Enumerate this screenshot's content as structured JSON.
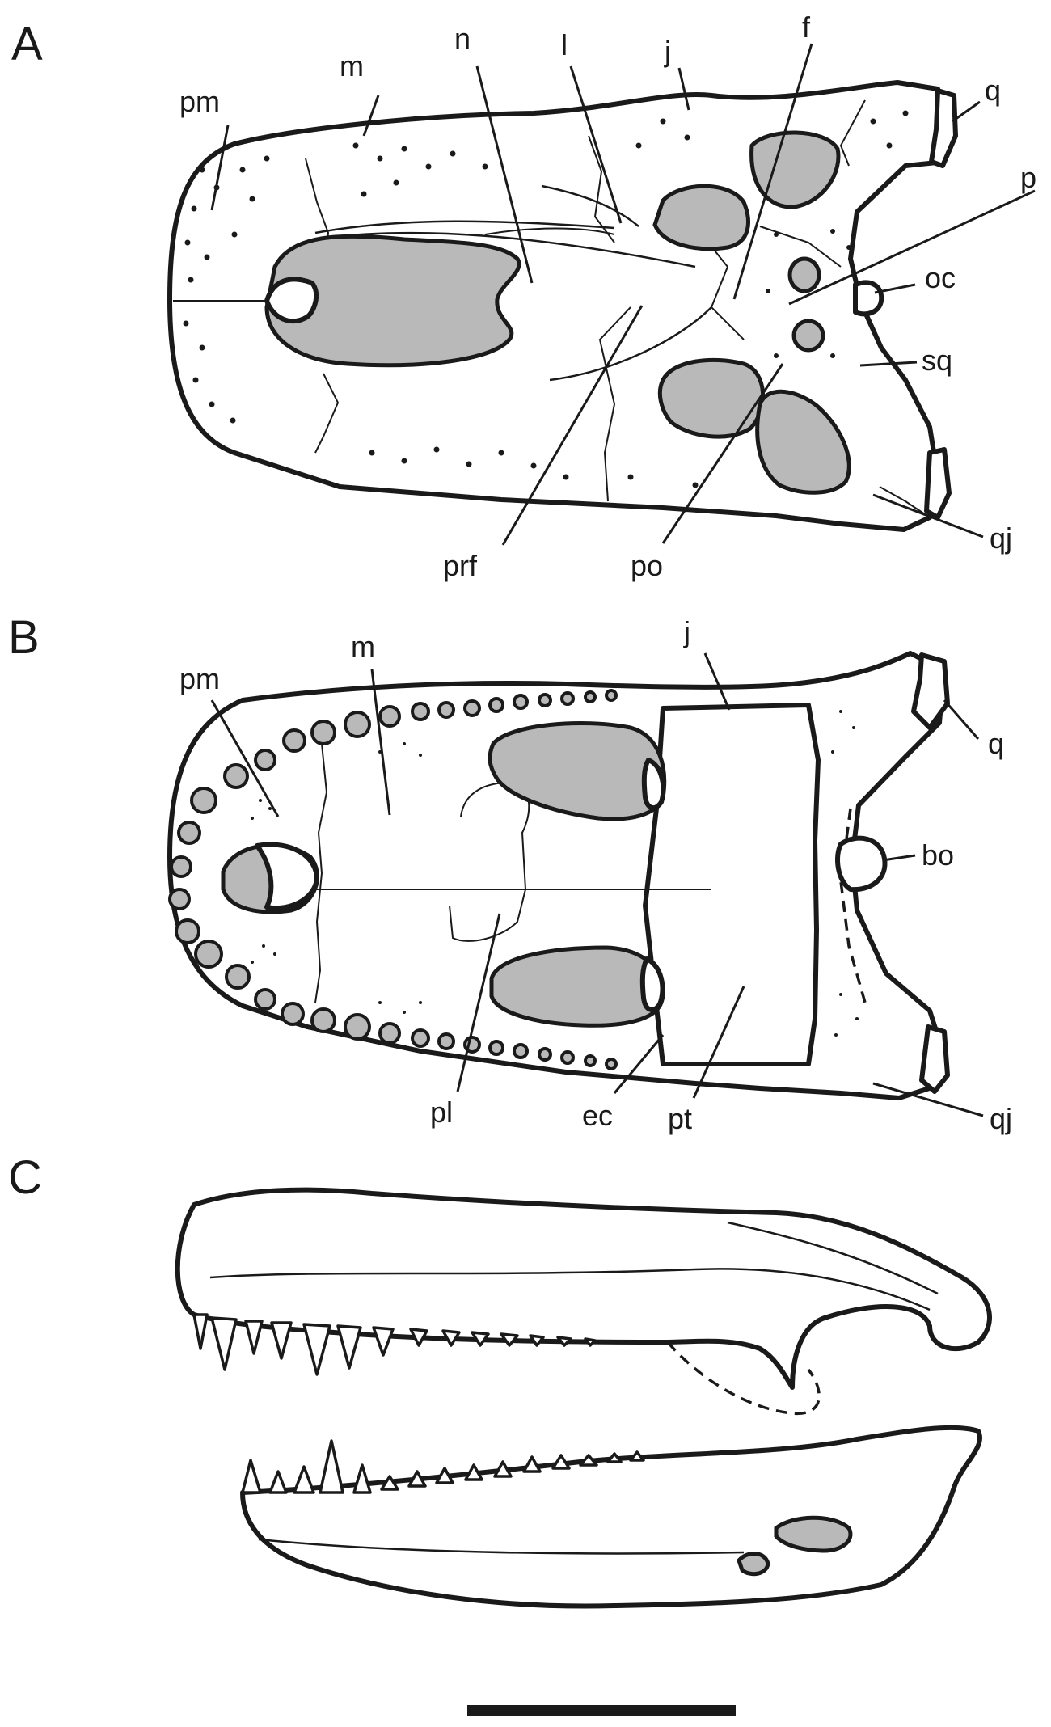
{
  "figure": {
    "panels": [
      {
        "letter": "A",
        "labels": [
          "pm",
          "m",
          "n",
          "l",
          "j",
          "f",
          "q",
          "p",
          "oc",
          "sq",
          "qj",
          "prf",
          "po"
        ]
      },
      {
        "letter": "B",
        "labels": [
          "pm",
          "m",
          "j",
          "q",
          "bo",
          "qj",
          "pl",
          "ec",
          "pt"
        ]
      },
      {
        "letter": "C",
        "labels": []
      }
    ]
  },
  "colors": {
    "ink": "#1a1a1a",
    "fenestra_fill": "#b9b9b9",
    "bone_fill": "#ffffff",
    "background": "#ffffff"
  },
  "scale_bar": {
    "visible": true
  }
}
